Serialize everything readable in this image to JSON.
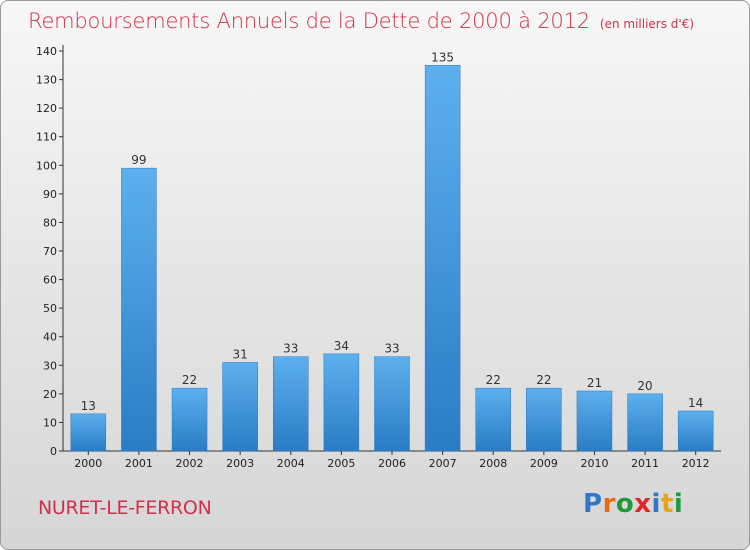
{
  "chart_data": {
    "type": "bar",
    "title": "Remboursements Annuels de la Dette de 2000 à 2012",
    "unit": "(en milliers d'€)",
    "categories": [
      "2000",
      "2001",
      "2002",
      "2003",
      "2004",
      "2005",
      "2006",
      "2007",
      "2008",
      "2009",
      "2010",
      "2011",
      "2012"
    ],
    "values": [
      13,
      99,
      22,
      31,
      33,
      34,
      33,
      135,
      22,
      22,
      21,
      20,
      14
    ],
    "ylim": [
      0,
      140
    ],
    "yticks": [
      0,
      10,
      20,
      30,
      40,
      50,
      60,
      70,
      80,
      90,
      100,
      110,
      120,
      130,
      140
    ],
    "grid": false,
    "legend": "none",
    "bar_color": "#3a90d8"
  },
  "footer": {
    "commune": "NURET-LE-FERRON"
  },
  "logo": {
    "text": "Proxiti",
    "letters": [
      "P",
      "r",
      "o",
      "x",
      "i",
      "t",
      "i"
    ],
    "colors": [
      "#2f78c8",
      "#e86a17",
      "#1f9a3a",
      "#e3262c",
      "#2f78c8",
      "#e8a417",
      "#1f9a3a"
    ]
  },
  "colors": {
    "title": "#d2304a",
    "axis": "#333333"
  }
}
